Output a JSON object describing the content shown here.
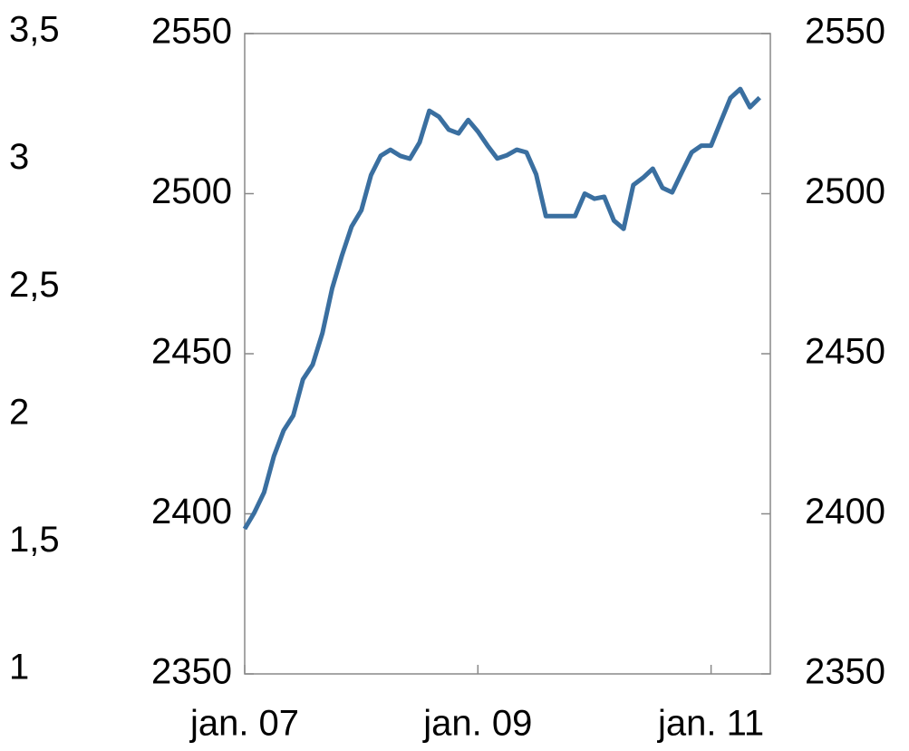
{
  "chart_data": {
    "type": "line",
    "x": [
      0,
      1,
      2,
      3,
      4,
      5,
      6,
      7,
      8,
      9,
      10,
      11,
      12,
      13,
      14,
      15,
      16,
      17,
      18,
      19,
      20,
      21,
      22,
      23,
      24,
      25,
      26,
      27,
      28,
      29,
      30,
      31,
      32,
      33,
      34,
      35,
      36,
      37,
      38,
      39,
      40,
      41,
      42,
      43,
      44,
      45,
      46,
      47,
      48,
      49,
      50,
      51,
      52,
      53
    ],
    "series": [
      {
        "color": "#3a6fa0",
        "values": [
          2395.3,
          2400.4,
          2406.7,
          2418,
          2426,
          2430.7,
          2442,
          2446.6,
          2456.5,
          2470.4,
          2480.6,
          2489.7,
          2494.8,
          2505.8,
          2511.8,
          2513.7,
          2511.8,
          2510.9,
          2516,
          2525.9,
          2524,
          2520,
          2518.8,
          2523,
          2519.4,
          2515,
          2511,
          2512,
          2513.7,
          2512.9,
          2506,
          2493,
          2493,
          2493,
          2493,
          2500,
          2498.4,
          2499,
          2491.6,
          2489,
          2502.7,
          2505,
          2507.8,
          2501.8,
          2500.4,
          2506.7,
          2512.9,
          2515,
          2515,
          2522.5,
          2529.9,
          2532.7,
          2527,
          2530
        ]
      }
    ],
    "xlim": [
      0,
      54.1
    ],
    "xticks": [
      {
        "value": 0,
        "label": "jan. 07"
      },
      {
        "value": 24,
        "label": "jan. 09"
      },
      {
        "value": 48,
        "label": "jan. 11"
      }
    ],
    "ylim": [
      2350,
      2550
    ],
    "yticks": [
      2350,
      2400,
      2450,
      2500,
      2550
    ],
    "y2lim": [
      2350,
      2550
    ],
    "y2ticks": [
      2350,
      2400,
      2450,
      2500,
      2550
    ],
    "y3lim": [
      1,
      3.5
    ],
    "y3ticks": [
      1,
      {
        "value": 1.5,
        "label": "1,5"
      },
      2,
      {
        "value": 2.5,
        "label": "2,5"
      },
      3,
      {
        "value": 3.5,
        "label": "3,5"
      }
    ]
  }
}
